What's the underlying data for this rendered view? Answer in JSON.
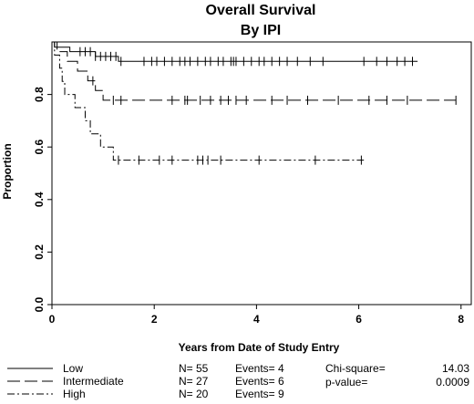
{
  "chart_data": {
    "type": "line",
    "title": "Overall Survival",
    "subtitle": "By IPI",
    "xlabel": "Years from Date of Study Entry",
    "ylabel": "Proportion",
    "xlim": [
      0,
      8.2
    ],
    "ylim": [
      0,
      1.0
    ],
    "xticks": [
      "0",
      "2",
      "4",
      "6",
      "8"
    ],
    "yticks": [
      "0.0",
      "0.2",
      "0.4",
      "0.6",
      "0.8"
    ],
    "grid": false,
    "legend_position": "bottom",
    "series": [
      {
        "name": "Low",
        "n": "N= 55",
        "events": "Events= 4",
        "dash": "solid",
        "steps": [
          [
            0,
            1.0
          ],
          [
            0.05,
            0.98
          ],
          [
            0.35,
            0.963
          ],
          [
            0.85,
            0.945
          ],
          [
            1.3,
            0.926
          ],
          [
            7.15,
            0.926
          ]
        ],
        "censors": [
          0.55,
          0.65,
          0.75,
          0.85,
          0.95,
          1.05,
          1.15,
          1.25,
          1.35,
          1.8,
          1.95,
          2.05,
          2.2,
          2.35,
          2.5,
          2.6,
          2.7,
          2.85,
          3.0,
          3.1,
          3.25,
          3.35,
          3.5,
          3.55,
          3.6,
          3.75,
          3.9,
          4.05,
          4.15,
          4.3,
          4.45,
          4.6,
          4.8,
          5.05,
          5.3,
          6.1,
          6.35,
          6.55,
          6.75,
          6.9,
          7.05
        ]
      },
      {
        "name": "Intermediate",
        "n": "N= 27",
        "events": "Events= 6",
        "dash": "long-dash",
        "steps": [
          [
            0,
            1.0
          ],
          [
            0.1,
            0.963
          ],
          [
            0.3,
            0.926
          ],
          [
            0.5,
            0.889
          ],
          [
            0.7,
            0.852
          ],
          [
            0.85,
            0.815
          ],
          [
            1.0,
            0.778
          ],
          [
            7.9,
            0.778
          ]
        ],
        "censors": [
          0.8,
          1.2,
          1.35,
          2.35,
          2.6,
          2.65,
          2.9,
          3.1,
          3.3,
          3.45,
          3.6,
          3.8,
          4.3,
          4.6,
          5.0,
          5.6,
          6.2,
          6.55,
          6.95,
          7.9
        ]
      },
      {
        "name": "High",
        "n": "N= 20",
        "events": "Events= 9",
        "dash": "dash-dot",
        "steps": [
          [
            0,
            1.0
          ],
          [
            0.05,
            0.95
          ],
          [
            0.15,
            0.9
          ],
          [
            0.2,
            0.85
          ],
          [
            0.25,
            0.8
          ],
          [
            0.45,
            0.75
          ],
          [
            0.65,
            0.7
          ],
          [
            0.75,
            0.65
          ],
          [
            0.95,
            0.6
          ],
          [
            1.2,
            0.55
          ],
          [
            6.1,
            0.55
          ]
        ],
        "censors": [
          1.3,
          1.7,
          2.1,
          2.35,
          2.85,
          2.95,
          3.05,
          3.3,
          4.05,
          5.15,
          6.05
        ]
      }
    ],
    "stats": {
      "chi_label": "Chi-square=",
      "chi_value": "14.03",
      "p_label": "p-value=",
      "p_value": "0.0009"
    }
  }
}
